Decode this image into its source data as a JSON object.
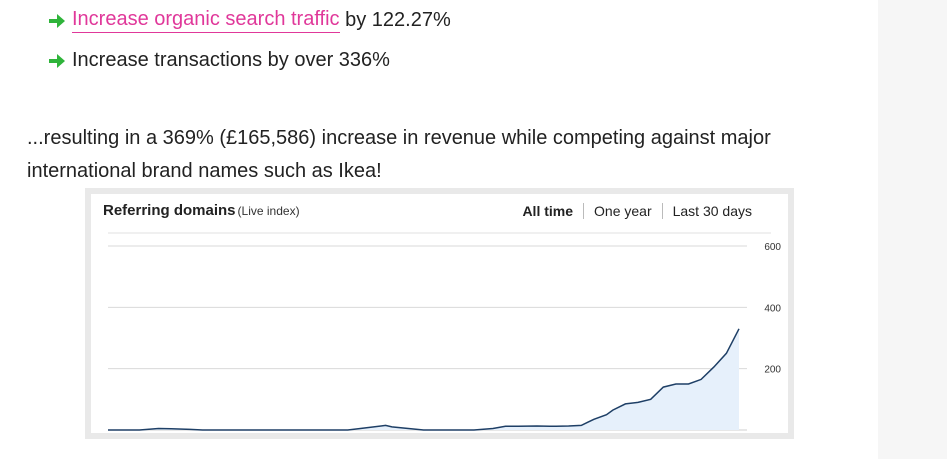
{
  "bullets": [
    {
      "link_text": "Increase organic search traffic",
      "text": " by 122.27%"
    },
    {
      "text": "Increase transactions by over 336%"
    }
  ],
  "paragraph": "...resulting in a 369% (£165,586) increase in revenue while competing against major international brand names such as Ikea!",
  "colors": {
    "link": "#e0389a",
    "arrow": "#2fb43a",
    "line": "#1e3f66",
    "fill": "#e6f0fb"
  },
  "chart_widget": {
    "title": "Referring domains",
    "subtitle": "(Live index)",
    "tabs": [
      "All time",
      "One year",
      "Last 30 days"
    ],
    "active_tab": "All time"
  },
  "chart_data": {
    "type": "area",
    "title": "Referring domains",
    "ylim": [
      0,
      600
    ],
    "yticks": [
      200,
      400,
      600
    ],
    "ytick_labels": [
      "200",
      "400",
      "600"
    ],
    "grid": true,
    "x": [
      0,
      5,
      8,
      10,
      13,
      15,
      18,
      20,
      28,
      33,
      38,
      40,
      44,
      45,
      49,
      50,
      55,
      58,
      61,
      63,
      65,
      68,
      70,
      71,
      73,
      75,
      76,
      77,
      79,
      80,
      82,
      84,
      86,
      88,
      90,
      92,
      94,
      96,
      98,
      100
    ],
    "y": [
      0,
      0,
      5,
      4,
      2,
      0,
      0,
      0,
      0,
      0,
      0,
      5,
      15,
      10,
      2,
      0,
      0,
      0,
      5,
      12,
      12,
      13,
      12,
      12,
      13,
      15,
      25,
      35,
      50,
      65,
      85,
      90,
      100,
      140,
      150,
      150,
      165,
      205,
      250,
      330
    ]
  }
}
